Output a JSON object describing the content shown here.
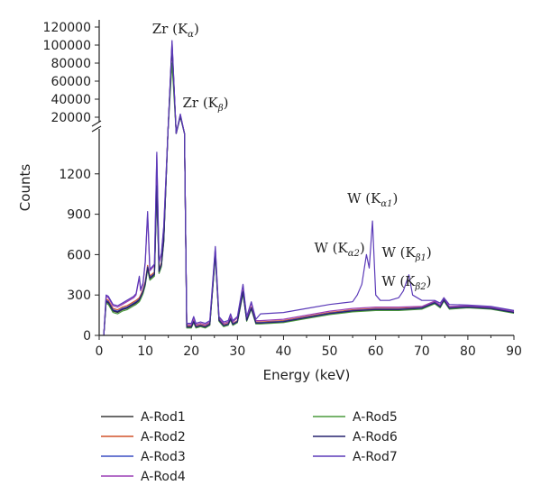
{
  "chart_data": {
    "type": "line",
    "title": "",
    "xlabel": "Energy (keV)",
    "ylabel": "Counts",
    "xlim": [
      0,
      90
    ],
    "ylim_lower": [
      0,
      1500
    ],
    "ylim_upper": [
      20000,
      120000
    ],
    "x_ticks": [
      "0",
      "10",
      "20",
      "30",
      "40",
      "50",
      "60",
      "70",
      "80",
      "90"
    ],
    "y_ticks_lower": [
      "0",
      "300",
      "600",
      "900",
      "1200"
    ],
    "y_ticks_upper": [
      "20000",
      "40000",
      "60000",
      "80000",
      "100000",
      "120000"
    ],
    "axis_break": true,
    "legend_position": "bottom",
    "annotations": [
      {
        "main": "Zr (K",
        "sub": "α",
        "tail": ")",
        "x": 15.8,
        "y": 105000
      },
      {
        "main": "Zr (K",
        "sub": "β",
        "tail": ")",
        "x": 17.7,
        "y": 23000
      },
      {
        "main": "W (K",
        "sub": "α1",
        "tail": ")",
        "x": 59.3,
        "y": 850
      },
      {
        "main": "W (K",
        "sub": "α2",
        "tail": ")",
        "x": 58.0,
        "y": 630
      },
      {
        "main": "W (K",
        "sub": "β1",
        "tail": ")",
        "x": 67.2,
        "y": 450
      },
      {
        "main": "W (K",
        "sub": "β2",
        "tail": ")",
        "x": 69.5,
        "y": 300
      }
    ],
    "series": [
      {
        "name": "A-Rod1",
        "color": "#3a3a3a",
        "x": [
          1,
          1.5,
          2,
          3,
          4,
          5,
          6,
          7,
          7.5,
          8,
          8.7,
          9,
          9.5,
          10,
          10.5,
          11,
          12,
          12.5,
          13,
          13.5,
          14,
          14.9,
          15.8,
          16.7,
          17.6,
          18.5,
          19,
          20,
          20.5,
          21,
          22,
          23,
          24,
          25.2,
          26,
          27,
          28,
          28.5,
          29,
          30,
          31.2,
          32,
          33,
          34,
          35,
          40,
          45,
          50,
          55,
          60,
          65,
          70,
          72.8,
          74,
          74.8,
          76,
          80,
          85,
          90
        ],
        "y": [
          0,
          250,
          240,
          180,
          170,
          190,
          200,
          220,
          230,
          240,
          260,
          280,
          320,
          380,
          500,
          420,
          450,
          1100,
          470,
          520,
          700,
          1500,
          99000,
          1500,
          21000,
          1500,
          60,
          60,
          100,
          60,
          70,
          60,
          80,
          600,
          110,
          70,
          80,
          120,
          80,
          100,
          320,
          110,
          200,
          90,
          90,
          100,
          130,
          160,
          180,
          190,
          190,
          200,
          240,
          210,
          260,
          200,
          210,
          200,
          170
        ]
      },
      {
        "name": "A-Rod2",
        "color": "#d2522a",
        "x": [
          1,
          1.5,
          2,
          3,
          4,
          5,
          6,
          7,
          7.5,
          8,
          8.7,
          9,
          9.5,
          10,
          10.5,
          11,
          12,
          12.5,
          13,
          13.5,
          14,
          14.9,
          15.8,
          16.7,
          17.6,
          18.5,
          19,
          20,
          20.5,
          21,
          22,
          23,
          24,
          25.2,
          26,
          27,
          28,
          28.5,
          29,
          30,
          31.2,
          32,
          33,
          34,
          35,
          40,
          45,
          50,
          55,
          60,
          65,
          70,
          72.8,
          74,
          74.8,
          76,
          80,
          85,
          90
        ],
        "y": [
          0,
          270,
          260,
          200,
          190,
          210,
          220,
          240,
          250,
          260,
          280,
          300,
          340,
          400,
          520,
          440,
          470,
          1150,
          490,
          540,
          720,
          1500,
          97000,
          1500,
          21500,
          1500,
          70,
          70,
          110,
          70,
          80,
          70,
          90,
          620,
          120,
          80,
          90,
          130,
          90,
          110,
          330,
          120,
          210,
          100,
          100,
          110,
          140,
          170,
          190,
          200,
          200,
          210,
          250,
          220,
          270,
          210,
          215,
          205,
          175
        ]
      },
      {
        "name": "A-Rod3",
        "color": "#3b4fc4",
        "x": [
          1,
          1.5,
          2,
          3,
          4,
          5,
          6,
          7,
          7.5,
          8,
          8.7,
          9,
          9.5,
          10,
          10.5,
          11,
          12,
          12.5,
          13,
          13.5,
          14,
          14.9,
          15.8,
          16.7,
          17.6,
          18.5,
          19,
          20,
          20.5,
          21,
          22,
          23,
          24,
          25.2,
          26,
          27,
          28,
          28.5,
          29,
          30,
          31.2,
          32,
          33,
          34,
          35,
          40,
          45,
          50,
          55,
          60,
          65,
          70,
          72.8,
          74,
          74.8,
          76,
          80,
          85,
          90
        ],
        "y": [
          0,
          260,
          250,
          190,
          180,
          200,
          210,
          230,
          240,
          250,
          270,
          290,
          330,
          390,
          510,
          430,
          460,
          1120,
          480,
          530,
          710,
          1500,
          101000,
          1500,
          21800,
          1500,
          65,
          65,
          105,
          65,
          75,
          65,
          85,
          610,
          115,
          75,
          85,
          125,
          85,
          105,
          325,
          115,
          205,
          95,
          95,
          105,
          135,
          165,
          185,
          195,
          195,
          205,
          245,
          215,
          265,
          205,
          212,
          202,
          172
        ]
      },
      {
        "name": "A-Rod4",
        "color": "#9b3fb5",
        "x": [
          1,
          1.5,
          2,
          3,
          4,
          5,
          6,
          7,
          7.5,
          8,
          8.7,
          9,
          9.5,
          10,
          10.5,
          11,
          12,
          12.5,
          13,
          13.5,
          14,
          14.9,
          15.8,
          16.7,
          17.6,
          18.5,
          19,
          20,
          20.5,
          21,
          22,
          23,
          24,
          25.2,
          26,
          27,
          28,
          28.5,
          29,
          30,
          31.2,
          32,
          33,
          34,
          35,
          40,
          45,
          50,
          55,
          60,
          65,
          70,
          72.8,
          74,
          74.8,
          76,
          80,
          85,
          90
        ],
        "y": [
          0,
          290,
          280,
          220,
          210,
          230,
          250,
          270,
          280,
          300,
          430,
          330,
          380,
          540,
          900,
          480,
          520,
          1340,
          540,
          600,
          800,
          1500,
          104000,
          1500,
          23000,
          1500,
          80,
          80,
          130,
          80,
          90,
          80,
          100,
          650,
          130,
          90,
          100,
          150,
          100,
          130,
          370,
          130,
          240,
          110,
          110,
          120,
          150,
          180,
          200,
          210,
          210,
          215,
          255,
          225,
          280,
          215,
          220,
          210,
          180
        ]
      },
      {
        "name": "A-Rod5",
        "color": "#4a9a3c",
        "x": [
          1,
          1.5,
          2,
          3,
          4,
          5,
          6,
          7,
          7.5,
          8,
          8.7,
          9,
          9.5,
          10,
          10.5,
          11,
          12,
          12.5,
          13,
          13.5,
          14,
          14.9,
          15.8,
          16.7,
          17.6,
          18.5,
          19,
          20,
          20.5,
          21,
          22,
          23,
          24,
          25.2,
          26,
          27,
          28,
          28.5,
          29,
          30,
          31.2,
          32,
          33,
          34,
          35,
          40,
          45,
          50,
          55,
          60,
          65,
          70,
          72.8,
          74,
          74.8,
          76,
          80,
          85,
          90
        ],
        "y": [
          0,
          240,
          230,
          170,
          160,
          180,
          190,
          210,
          220,
          230,
          250,
          270,
          310,
          370,
          490,
          410,
          440,
          1080,
          460,
          510,
          690,
          1500,
          80000,
          1500,
          20500,
          1500,
          55,
          55,
          95,
          55,
          65,
          55,
          75,
          590,
          105,
          65,
          75,
          115,
          75,
          95,
          310,
          105,
          195,
          85,
          85,
          95,
          125,
          155,
          175,
          185,
          185,
          195,
          235,
          205,
          255,
          195,
          205,
          195,
          165
        ]
      },
      {
        "name": "A-Rod6",
        "color": "#26226e",
        "x": [
          1,
          1.5,
          2,
          3,
          4,
          5,
          6,
          7,
          7.5,
          8,
          8.7,
          9,
          9.5,
          10,
          10.5,
          11,
          12,
          12.5,
          13,
          13.5,
          14,
          14.9,
          15.8,
          16.7,
          17.6,
          18.5,
          19,
          20,
          20.5,
          21,
          22,
          23,
          24,
          25.2,
          26,
          27,
          28,
          28.5,
          29,
          30,
          31.2,
          32,
          33,
          34,
          35,
          40,
          45,
          50,
          55,
          60,
          65,
          70,
          72.8,
          74,
          74.8,
          76,
          80,
          85,
          90
        ],
        "y": [
          0,
          255,
          245,
          185,
          175,
          195,
          205,
          225,
          235,
          245,
          265,
          285,
          325,
          385,
          505,
          425,
          455,
          1110,
          475,
          525,
          705,
          1500,
          98000,
          1500,
          21200,
          1500,
          62,
          62,
          102,
          62,
          72,
          62,
          82,
          605,
          112,
          72,
          82,
          122,
          82,
          102,
          322,
          112,
          202,
          92,
          92,
          102,
          132,
          162,
          182,
          192,
          192,
          202,
          242,
          212,
          262,
          202,
          210,
          200,
          170
        ]
      },
      {
        "name": "A-Rod7",
        "color": "#5b3ab8",
        "x": [
          1,
          1.5,
          2,
          3,
          4,
          5,
          6,
          7,
          7.5,
          8,
          8.7,
          9,
          9.5,
          10,
          10.5,
          11,
          12,
          12.5,
          13,
          13.5,
          14,
          14.9,
          15.8,
          16.7,
          17.6,
          18.5,
          19,
          20,
          20.5,
          21,
          22,
          23,
          24,
          25.2,
          26,
          27,
          28,
          28.5,
          29,
          30,
          31.2,
          32,
          33,
          34,
          35,
          40,
          45,
          50,
          55,
          56,
          57,
          58,
          58.6,
          59.3,
          60,
          61,
          63,
          65,
          66,
          67.2,
          68,
          69,
          70,
          72.8,
          74,
          74.8,
          76,
          80,
          85,
          90
        ],
        "y": [
          0,
          300,
          290,
          230,
          220,
          240,
          260,
          280,
          290,
          310,
          440,
          340,
          390,
          550,
          920,
          490,
          530,
          1360,
          550,
          610,
          810,
          1500,
          105000,
          1500,
          23500,
          1500,
          90,
          90,
          140,
          90,
          100,
          90,
          110,
          660,
          140,
          100,
          110,
          160,
          110,
          140,
          380,
          140,
          250,
          120,
          160,
          170,
          200,
          230,
          250,
          300,
          380,
          600,
          500,
          850,
          300,
          260,
          260,
          280,
          330,
          450,
          300,
          280,
          260,
          260,
          240,
          280,
          230,
          225,
          215,
          185
        ]
      }
    ]
  }
}
